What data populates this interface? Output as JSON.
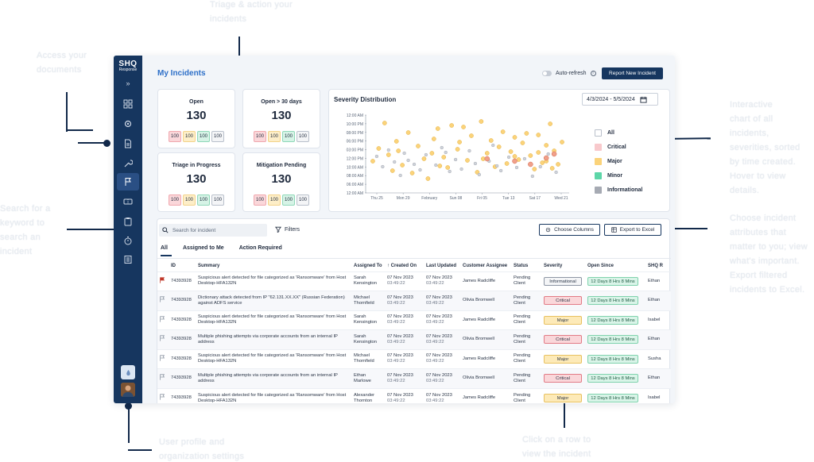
{
  "callouts": {
    "top": [
      "Triage & action your",
      "incidents"
    ],
    "left_top": [
      "Access your",
      "documents"
    ],
    "left_mid": [
      "Search for a",
      "keyword to",
      "search an",
      "incident"
    ],
    "right_top": [
      "Interactive",
      "chart of all incidents,",
      "severities, sorted",
      "by time created.",
      "Hover to view details."
    ],
    "right_mid": [
      "Choose incident",
      "attributes that",
      "matter to you; view",
      "what's important.",
      "Export filtered",
      "incidents to Excel."
    ],
    "bottom_left": [
      "User profile and",
      "organization settings"
    ],
    "bottom_right": [
      "Click on a row to",
      "view the incident"
    ]
  },
  "app": {
    "logo_line1": "SHQ",
    "logo_line2": "Response",
    "expand": "»",
    "sidebar_icons": [
      "dashboard-icon",
      "settings-gear-icon",
      "document-icon",
      "wrench-icon",
      "flag-icon",
      "ticket-icon",
      "clipboard-icon",
      "timer-icon",
      "book-icon"
    ],
    "title": "My Incidents",
    "auto_refresh": "Auto-refresh",
    "info": "i",
    "report_button": "Report New Incident"
  },
  "stats": [
    {
      "title": "Open",
      "value": "130",
      "pills": [
        "100",
        "100",
        "100",
        "100"
      ]
    },
    {
      "title": "Open > 30 days",
      "value": "130",
      "pills": [
        "100",
        "100",
        "100",
        "100"
      ]
    },
    {
      "title": "Triage in Progress",
      "value": "130",
      "pills": [
        "100",
        "100",
        "100",
        "100"
      ]
    },
    {
      "title": "Mitigation Pending",
      "value": "130",
      "pills": [
        "100",
        "100",
        "100",
        "100"
      ]
    }
  ],
  "chart": {
    "title": "Severity Distribution",
    "date_range": "4/3/2024 - 5/5/2024",
    "legend": [
      "All",
      "Critical",
      "Major",
      "Minor",
      "Informational"
    ],
    "colors": {
      "Critical": "#f8c9cc",
      "Major": "#fbd37a",
      "Minor": "#5dd6a8",
      "Informational": "#a6aab3"
    }
  },
  "chart_data": {
    "type": "scatter",
    "title": "Severity Distribution",
    "y_ticks": [
      "12:00 AM",
      "10:00 PM",
      "08:00 PM",
      "06:00 PM",
      "03:00 PM",
      "12:00 PM",
      "10:00 AM",
      "08:00 AM",
      "06:00 AM",
      "12:00 AM"
    ],
    "x_ticks": [
      "Thu 25",
      "Mon 29",
      "February",
      "Sun 08",
      "Fri 05",
      "Tue 13",
      "Sat 17",
      "Wed 21"
    ],
    "series": [
      {
        "name": "Major",
        "points": [
          [
            0.02,
            3.6
          ],
          [
            0.05,
            5.2
          ],
          [
            0.08,
            8.4
          ],
          [
            0.1,
            4.4
          ],
          [
            0.12,
            2.4
          ],
          [
            0.14,
            6.1
          ],
          [
            0.17,
            3.1
          ],
          [
            0.2,
            7.2
          ],
          [
            0.22,
            2.1
          ],
          [
            0.25,
            5.5
          ],
          [
            0.28,
            3.9
          ],
          [
            0.3,
            1.4
          ],
          [
            0.33,
            6.4
          ],
          [
            0.35,
            7.7
          ],
          [
            0.38,
            4.1
          ],
          [
            0.4,
            2.8
          ],
          [
            0.42,
            8.1
          ],
          [
            0.45,
            5.1
          ],
          [
            0.48,
            7.9
          ],
          [
            0.5,
            3.7
          ],
          [
            0.52,
            6.8
          ],
          [
            0.55,
            2.2
          ],
          [
            0.57,
            8.6
          ],
          [
            0.6,
            4.6
          ],
          [
            0.62,
            6.2
          ],
          [
            0.64,
            2.9
          ],
          [
            0.66,
            5.4
          ],
          [
            0.68,
            7.3
          ],
          [
            0.7,
            3.3
          ],
          [
            0.72,
            4.8
          ],
          [
            0.74,
            6.6
          ],
          [
            0.76,
            3.8
          ],
          [
            0.78,
            5.9
          ],
          [
            0.8,
            7.1
          ],
          [
            0.82,
            4.3
          ],
          [
            0.84,
            2.6
          ],
          [
            0.86,
            6.9
          ],
          [
            0.88,
            3.4
          ],
          [
            0.9,
            5.6
          ],
          [
            0.92,
            8.3
          ],
          [
            0.94,
            4.9
          ],
          [
            0.96,
            3.2
          ],
          [
            0.98,
            6.0
          ],
          [
            0.15,
            4.9
          ],
          [
            0.32,
            4.6
          ],
          [
            0.36,
            3.0
          ],
          [
            0.46,
            6.0
          ],
          [
            0.58,
            3.9
          ],
          [
            0.74,
            4.2
          ],
          [
            0.86,
            4.7
          ],
          [
            0.9,
            3.6
          ],
          [
            0.93,
            2.7
          ]
        ]
      },
      {
        "name": "Informational",
        "points": [
          [
            0.04,
            4.2
          ],
          [
            0.07,
            2.9
          ],
          [
            0.1,
            5.0
          ],
          [
            0.13,
            3.5
          ],
          [
            0.16,
            1.8
          ],
          [
            0.18,
            4.6
          ],
          [
            0.23,
            3.2
          ],
          [
            0.26,
            2.5
          ],
          [
            0.29,
            4.4
          ],
          [
            0.34,
            3.1
          ],
          [
            0.37,
            5.3
          ],
          [
            0.41,
            2.3
          ],
          [
            0.44,
            3.8
          ],
          [
            0.47,
            2.6
          ],
          [
            0.51,
            4.9
          ],
          [
            0.54,
            3.3
          ],
          [
            0.56,
            1.9
          ],
          [
            0.61,
            3.6
          ],
          [
            0.63,
            5.6
          ],
          [
            0.67,
            2.4
          ],
          [
            0.71,
            4.1
          ],
          [
            0.75,
            2.8
          ],
          [
            0.79,
            3.9
          ],
          [
            0.83,
            1.7
          ],
          [
            0.87,
            2.9
          ],
          [
            0.91,
            4.5
          ],
          [
            0.95,
            2.2
          ],
          [
            0.2,
            3.7
          ],
          [
            0.39,
            4.7
          ],
          [
            0.65,
            3.0
          ]
        ]
      },
      {
        "name": "Critical",
        "points": [
          [
            0.9,
            4.0
          ],
          [
            0.94,
            4.5
          ],
          [
            0.74,
            3.6
          ],
          [
            0.82,
            3.2
          ],
          [
            0.6,
            3.9
          ]
        ]
      }
    ]
  },
  "toolbar": {
    "search_placeholder": "Search for incident",
    "filters": "Filters",
    "choose_columns": "Choose Columns",
    "export": "Export to Excel"
  },
  "tabs": [
    "All",
    "Assigned to Me",
    "Action Required"
  ],
  "table": {
    "headers": [
      "",
      "ID",
      "Summary",
      "Assigned To",
      "↑ Created On",
      "Last Updated",
      "Customer Assignee",
      "Status",
      "Severity",
      "Open Since",
      "SHQ R"
    ],
    "rows": [
      {
        "flag": "red",
        "id": "74393928",
        "summary": "Suspicious alert detected for file categorized as 'Ransomware' from Host Desktop-HFA132N",
        "assigned": "Sarah Kensington",
        "created": "07 Nov 2023",
        "created_time": "03:49:22",
        "updated": "07 Nov 2023",
        "updated_time": "03:49:22",
        "customer": "James Radcliffe",
        "status": "Pending Client",
        "severity": "Informational",
        "since": "12 Days 8 Hrs 8 Mins",
        "shq": "Ethan"
      },
      {
        "flag": "none",
        "id": "74393928",
        "summary": "Dictionary attack detected from IP \"62.131.XX.XX\" (Russian Federation) against ADFS service",
        "assigned": "Michael Thornfield",
        "created": "07 Nov 2023",
        "created_time": "03:49:22",
        "updated": "07 Nov 2023",
        "updated_time": "03:49:22",
        "customer": "Olivia Bromwell",
        "status": "Pending Client",
        "severity": "Critical",
        "since": "12 Days 8 Hrs 8 Mins",
        "shq": "Ethan"
      },
      {
        "flag": "none",
        "id": "74393928",
        "summary": "Suspicious alert detected for file categorized as 'Ransomware' from Host Desktop-HFA132N",
        "assigned": "Sarah Kensington",
        "created": "07 Nov 2023",
        "created_time": "03:49:22",
        "updated": "07 Nov 2023",
        "updated_time": "03:49:22",
        "customer": "James Radcliffe",
        "status": "Pending Client",
        "severity": "Major",
        "since": "12 Days 8 Hrs 8 Mins",
        "shq": "Isabel"
      },
      {
        "flag": "none",
        "id": "74393928",
        "summary": "Multiple phishing attempts via corporate accounts from an internal IP address",
        "assigned": "Sarah Kensington",
        "created": "07 Nov 2023",
        "created_time": "03:49:22",
        "updated": "07 Nov 2023",
        "updated_time": "03:49:22",
        "customer": "Olivia Bromwell",
        "status": "Pending Client",
        "severity": "Critical",
        "since": "12 Days 8 Hrs 8 Mins",
        "shq": "Ethan"
      },
      {
        "flag": "none",
        "id": "74393928",
        "summary": "Suspicious alert detected for file categorized as 'Ransomware' from Host Desktop-HFA132N",
        "assigned": "Michael Thornfield",
        "created": "07 Nov 2023",
        "created_time": "03:49:22",
        "updated": "07 Nov 2023",
        "updated_time": "03:49:22",
        "customer": "James Radcliffe",
        "status": "Pending Client",
        "severity": "Major",
        "since": "12 Days 8 Hrs 8 Mins",
        "shq": "Susha"
      },
      {
        "flag": "none",
        "id": "74393928",
        "summary": "Multiple phishing attempts via corporate accounts from an internal IP address",
        "assigned": "Ethan Marlowe",
        "created": "07 Nov 2023",
        "created_time": "03:49:22",
        "updated": "07 Nov 2023",
        "updated_time": "03:49:22",
        "customer": "Olivia Bromwell",
        "status": "Pending Client",
        "severity": "Critical",
        "since": "12 Days 8 Hrs 8 Mins",
        "shq": "Ethan"
      },
      {
        "flag": "none",
        "id": "74393928",
        "summary": "Suspicious alert detected for file categorized as 'Ransomware' from Host Desktop-HFA132N",
        "assigned": "Alexander Thornton",
        "created": "07 Nov 2023",
        "created_time": "03:49:22",
        "updated": "07 Nov 2023",
        "updated_time": "03:49:22",
        "customer": "James Radcliffe",
        "status": "Pending Client",
        "severity": "Major",
        "since": "12 Days 8 Hrs 8 Mins",
        "shq": "Isabel"
      }
    ]
  }
}
